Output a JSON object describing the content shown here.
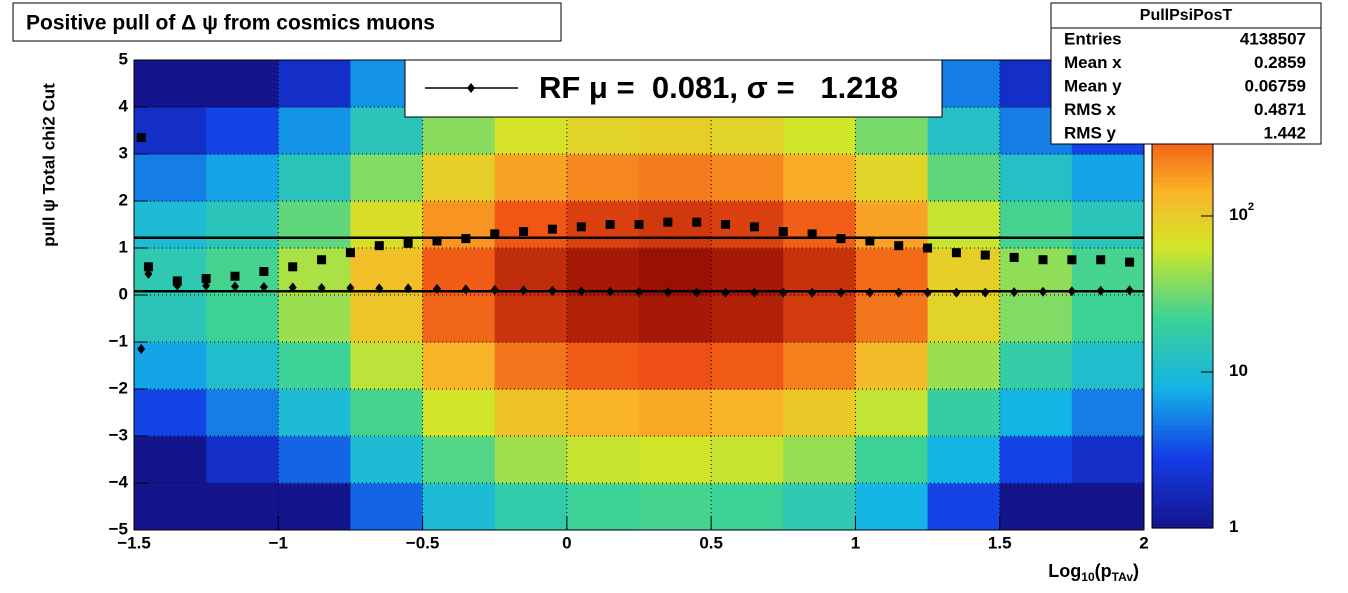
{
  "chart_data": {
    "type": "heatmap",
    "title": "Positive pull of Δ ψ from cosmics muons",
    "ylabel": "pull ψ    Total chi2 Cut",
    "xlabel_parts": [
      {
        "text": "Log"
      },
      {
        "text": "10",
        "sub": true
      },
      {
        "text": "(p"
      },
      {
        "text": "TAv",
        "sub": true
      },
      {
        "text": ")"
      }
    ],
    "xlim": [
      -1.5,
      2
    ],
    "ylim": [
      -5,
      5
    ],
    "xticks": [
      {
        "value": -1.5,
        "label": "−1.5"
      },
      {
        "value": -1,
        "label": "−1"
      },
      {
        "value": -0.5,
        "label": "−0.5"
      },
      0,
      0.5,
      1,
      1.5,
      2
    ],
    "yticks": [
      {
        "value": -5,
        "label": "−5"
      },
      {
        "value": -4,
        "label": "−4"
      },
      {
        "value": -3,
        "label": "−3"
      },
      {
        "value": -2,
        "label": "−2"
      },
      {
        "value": -1,
        "label": "−1"
      },
      0,
      1,
      2,
      3,
      4,
      5
    ],
    "grid": true,
    "log_z": true,
    "zlim": [
      1,
      1000
    ],
    "zticks": [
      1,
      10,
      {
        "value": 100,
        "label": "10",
        "exponent": "2"
      }
    ],
    "x_bins": [
      -1.5,
      -1.25,
      -1,
      -0.75,
      -0.5,
      -0.25,
      0,
      0.25,
      0.5,
      0.75,
      1,
      1.25,
      1.5,
      1.75,
      2
    ],
    "y_bins": [
      -5,
      -4,
      -3,
      -2,
      -1,
      0,
      1,
      2,
      3,
      4,
      5
    ],
    "z": [
      [
        1,
        1,
        1,
        4,
        10,
        17,
        22,
        24,
        22,
        16,
        8,
        3,
        1,
        1
      ],
      [
        1,
        2,
        4,
        10,
        26,
        45,
        58,
        64,
        58,
        42,
        22,
        8,
        3,
        2
      ],
      [
        3,
        5,
        10,
        24,
        64,
        112,
        144,
        160,
        144,
        104,
        56,
        19,
        8,
        5
      ],
      [
        7,
        11,
        22,
        54,
        144,
        252,
        324,
        360,
        324,
        234,
        126,
        43,
        18,
        11
      ],
      [
        14,
        22,
        43,
        108,
        288,
        504,
        648,
        720,
        648,
        468,
        252,
        86,
        36,
        22
      ],
      [
        16,
        24,
        48,
        120,
        320,
        560,
        720,
        800,
        720,
        520,
        280,
        96,
        40,
        24
      ],
      [
        10,
        14,
        29,
        72,
        192,
        336,
        432,
        480,
        432,
        312,
        168,
        58,
        24,
        14
      ],
      [
        5,
        7,
        14,
        36,
        96,
        168,
        216,
        240,
        216,
        156,
        84,
        29,
        12,
        7
      ],
      [
        2,
        3,
        6,
        14,
        38,
        67,
        86,
        96,
        86,
        62,
        34,
        12,
        5,
        3
      ],
      [
        1,
        1,
        2,
        6,
        16,
        28,
        36,
        40,
        36,
        26,
        14,
        5,
        2,
        1
      ]
    ],
    "x": [
      -1.475,
      -1.45,
      -1.35,
      -1.25,
      -1.15,
      -1.05,
      -0.95,
      -0.85,
      -0.75,
      -0.65,
      -0.55,
      -0.45,
      -0.35,
      -0.25,
      -0.15,
      -0.05,
      0.05,
      0.15,
      0.25,
      0.35,
      0.45,
      0.55,
      0.65,
      0.75,
      0.85,
      0.95,
      1.05,
      1.15,
      1.25,
      1.35,
      1.45,
      1.55,
      1.65,
      1.75,
      1.85,
      1.95
    ],
    "series": [
      {
        "marker": "square",
        "color": "#000000",
        "values": [
          3.35,
          0.6,
          0.3,
          0.35,
          0.4,
          0.5,
          0.6,
          0.75,
          0.9,
          1.05,
          1.1,
          1.15,
          1.2,
          1.3,
          1.35,
          1.4,
          1.45,
          1.5,
          1.5,
          1.55,
          1.55,
          1.5,
          1.45,
          1.35,
          1.3,
          1.2,
          1.15,
          1.05,
          1.0,
          0.9,
          0.85,
          0.8,
          0.75,
          0.75,
          0.75,
          0.7
        ]
      },
      {
        "marker": "diamond",
        "color": "#000000",
        "values": [
          -1.15,
          0.45,
          0.2,
          0.2,
          0.18,
          0.17,
          0.16,
          0.15,
          0.15,
          0.14,
          0.14,
          0.13,
          0.12,
          0.11,
          0.1,
          0.09,
          0.08,
          0.07,
          0.06,
          0.06,
          0.05,
          0.05,
          0.05,
          0.05,
          0.05,
          0.05,
          0.05,
          0.05,
          0.05,
          0.05,
          0.05,
          0.06,
          0.07,
          0.08,
          0.09,
          0.1
        ]
      }
    ],
    "hlines": [
      0.081,
      1.218
    ],
    "legend": "RF μ =  0.081, σ =   1.218",
    "stats": {
      "title": "PullPsiPosT",
      "rows": [
        [
          "Entries",
          "4138507"
        ],
        [
          "Mean x",
          "0.2859"
        ],
        [
          "Mean y",
          "0.06759"
        ],
        [
          "RMS x",
          "0.4871"
        ],
        [
          "RMS y",
          "1.442"
        ]
      ]
    }
  }
}
